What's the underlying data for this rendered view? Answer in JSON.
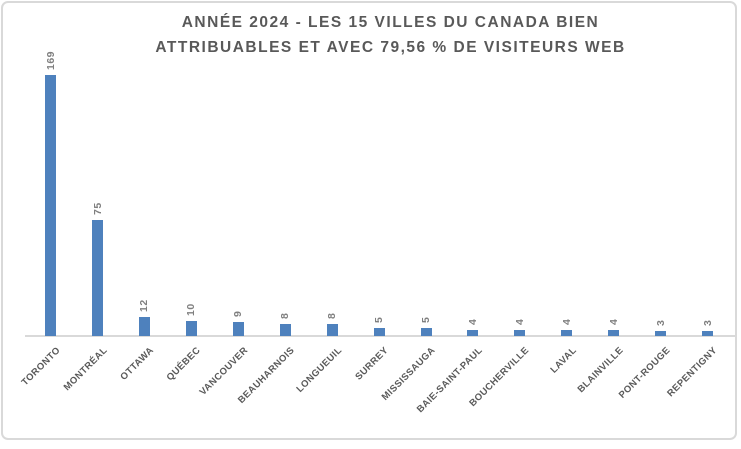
{
  "chart_data": {
    "type": "bar",
    "title": "ANNÉE 2024 - LES 15 VILLES DU CANADA BIEN ATTRIBUABLES ET AVEC 79,56 % DE VISITEURS WEB",
    "title_lines": [
      "ANNÉE 2024 - LES 15 VILLES DU CANADA BIEN",
      "ATTRIBUABLES ET AVEC 79,56 % DE VISITEURS WEB"
    ],
    "categories": [
      "TORONTO",
      "MONTRÉAL",
      "OTTAWA",
      "QUÉBEC",
      "VANCOUVER",
      "BEAUHARNOIS",
      "LONGUEUIL",
      "SURREY",
      "MISSISSAUGA",
      "BAIE-SAINT-PAUL",
      "BOUCHERVILLE",
      "LAVAL",
      "BLAINVILLE",
      "PONT-ROUGE",
      "REPENTIGNY"
    ],
    "values": [
      169,
      75,
      12,
      10,
      9,
      8,
      8,
      5,
      5,
      4,
      4,
      4,
      4,
      3,
      3
    ],
    "xlabel": "",
    "ylabel": "",
    "ylim": [
      0,
      175
    ],
    "grid": false,
    "legend": "none",
    "y_axis_visible": false,
    "data_label_rotation": -90,
    "category_label_rotation": -45,
    "colors": {
      "bar": "#4E81BD",
      "title": "#595959",
      "data_label": "#7F7F7F",
      "category_label": "#595959",
      "axis_line": "#D9D9D9",
      "border": "#D9D9D9",
      "background": "#FFFFFF"
    }
  }
}
